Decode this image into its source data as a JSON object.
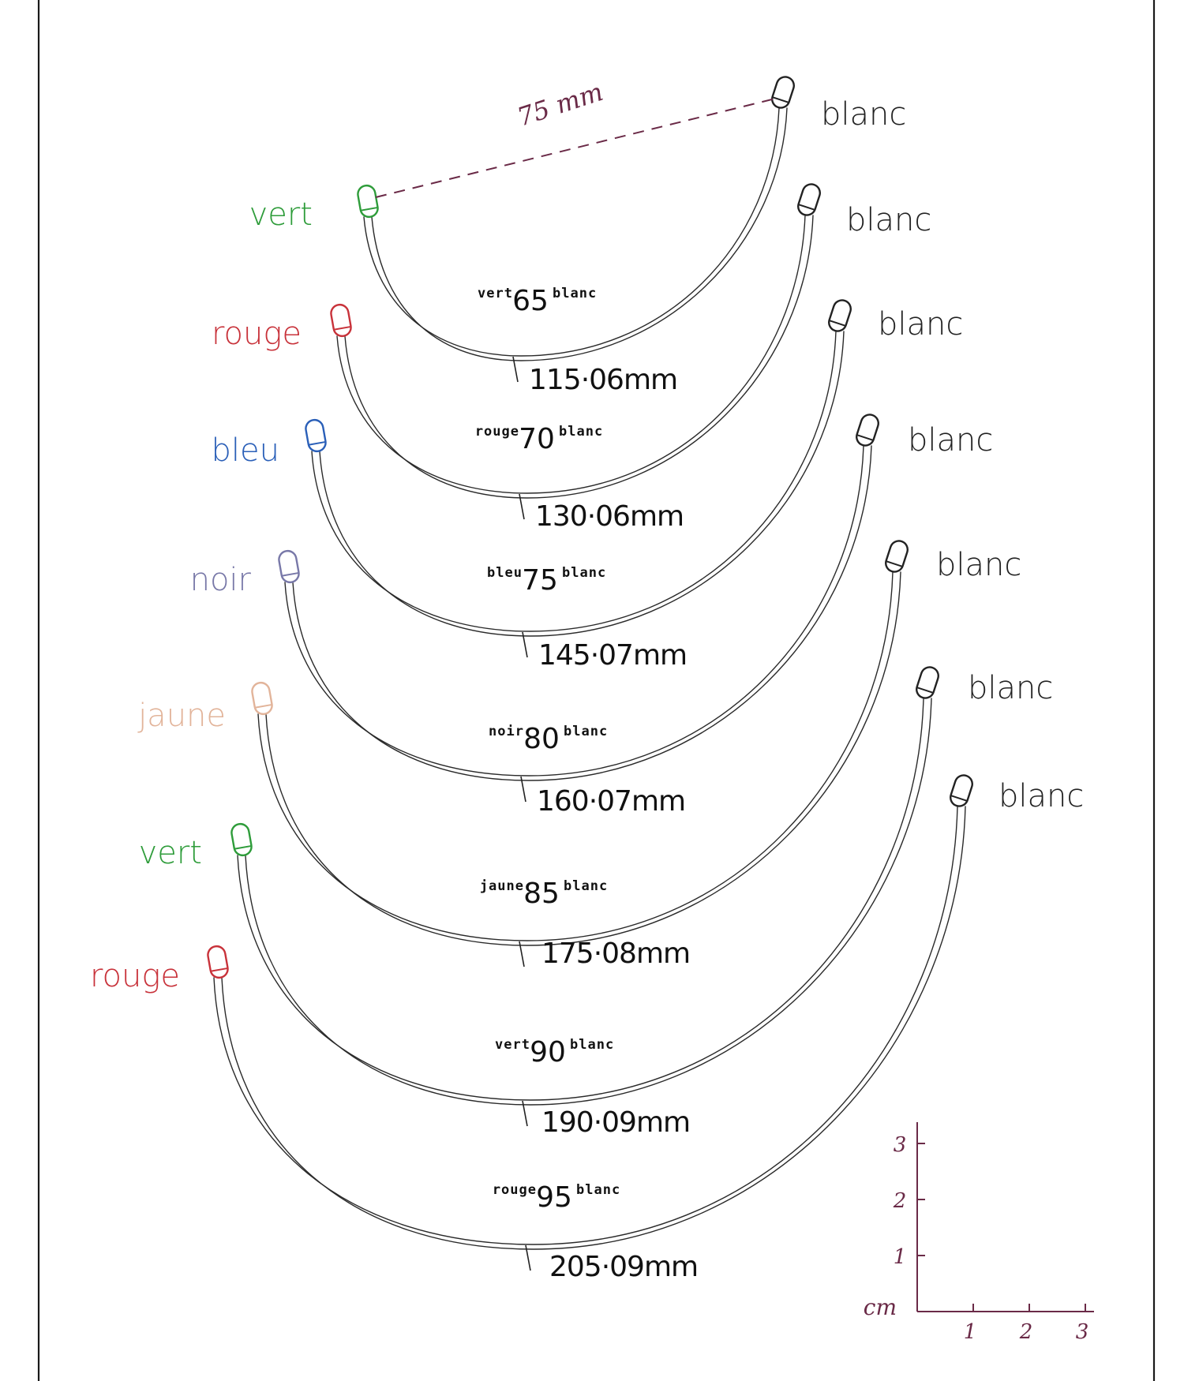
{
  "colors": {
    "vert": "#2e9c3a",
    "rouge": "#c8323a",
    "bleu": "#2a5fb8",
    "noir": "#7878a8",
    "jaune": "#e2b49a",
    "blanc": "#222222",
    "annotation": "#6a2a47"
  },
  "measurement_note": "75 mm",
  "wires": [
    {
      "left_label": "vert",
      "left_color": "vert",
      "right_label": "blanc",
      "size": "65",
      "length": "115·06mm"
    },
    {
      "left_label": "rouge",
      "left_color": "rouge",
      "right_label": "blanc",
      "size": "70",
      "length": "130·06mm"
    },
    {
      "left_label": "bleu",
      "left_color": "bleu",
      "right_label": "blanc",
      "size": "75",
      "length": "145·07mm"
    },
    {
      "left_label": "noir",
      "left_color": "noir",
      "right_label": "blanc",
      "size": "80",
      "length": "160·07mm"
    },
    {
      "left_label": "jaune",
      "left_color": "jaune",
      "right_label": "blanc",
      "size": "85",
      "length": "175·08mm"
    },
    {
      "left_label": "vert",
      "left_color": "vert",
      "right_label": "blanc",
      "size": "90",
      "length": "190·09mm"
    },
    {
      "left_label": "rouge",
      "left_color": "rouge",
      "right_label": "blanc",
      "size": "95",
      "length": "205·09mm"
    }
  ],
  "scale": {
    "unit": "cm",
    "x_ticks": [
      "1",
      "2",
      "3"
    ],
    "y_ticks": [
      "1",
      "2",
      "3"
    ]
  }
}
